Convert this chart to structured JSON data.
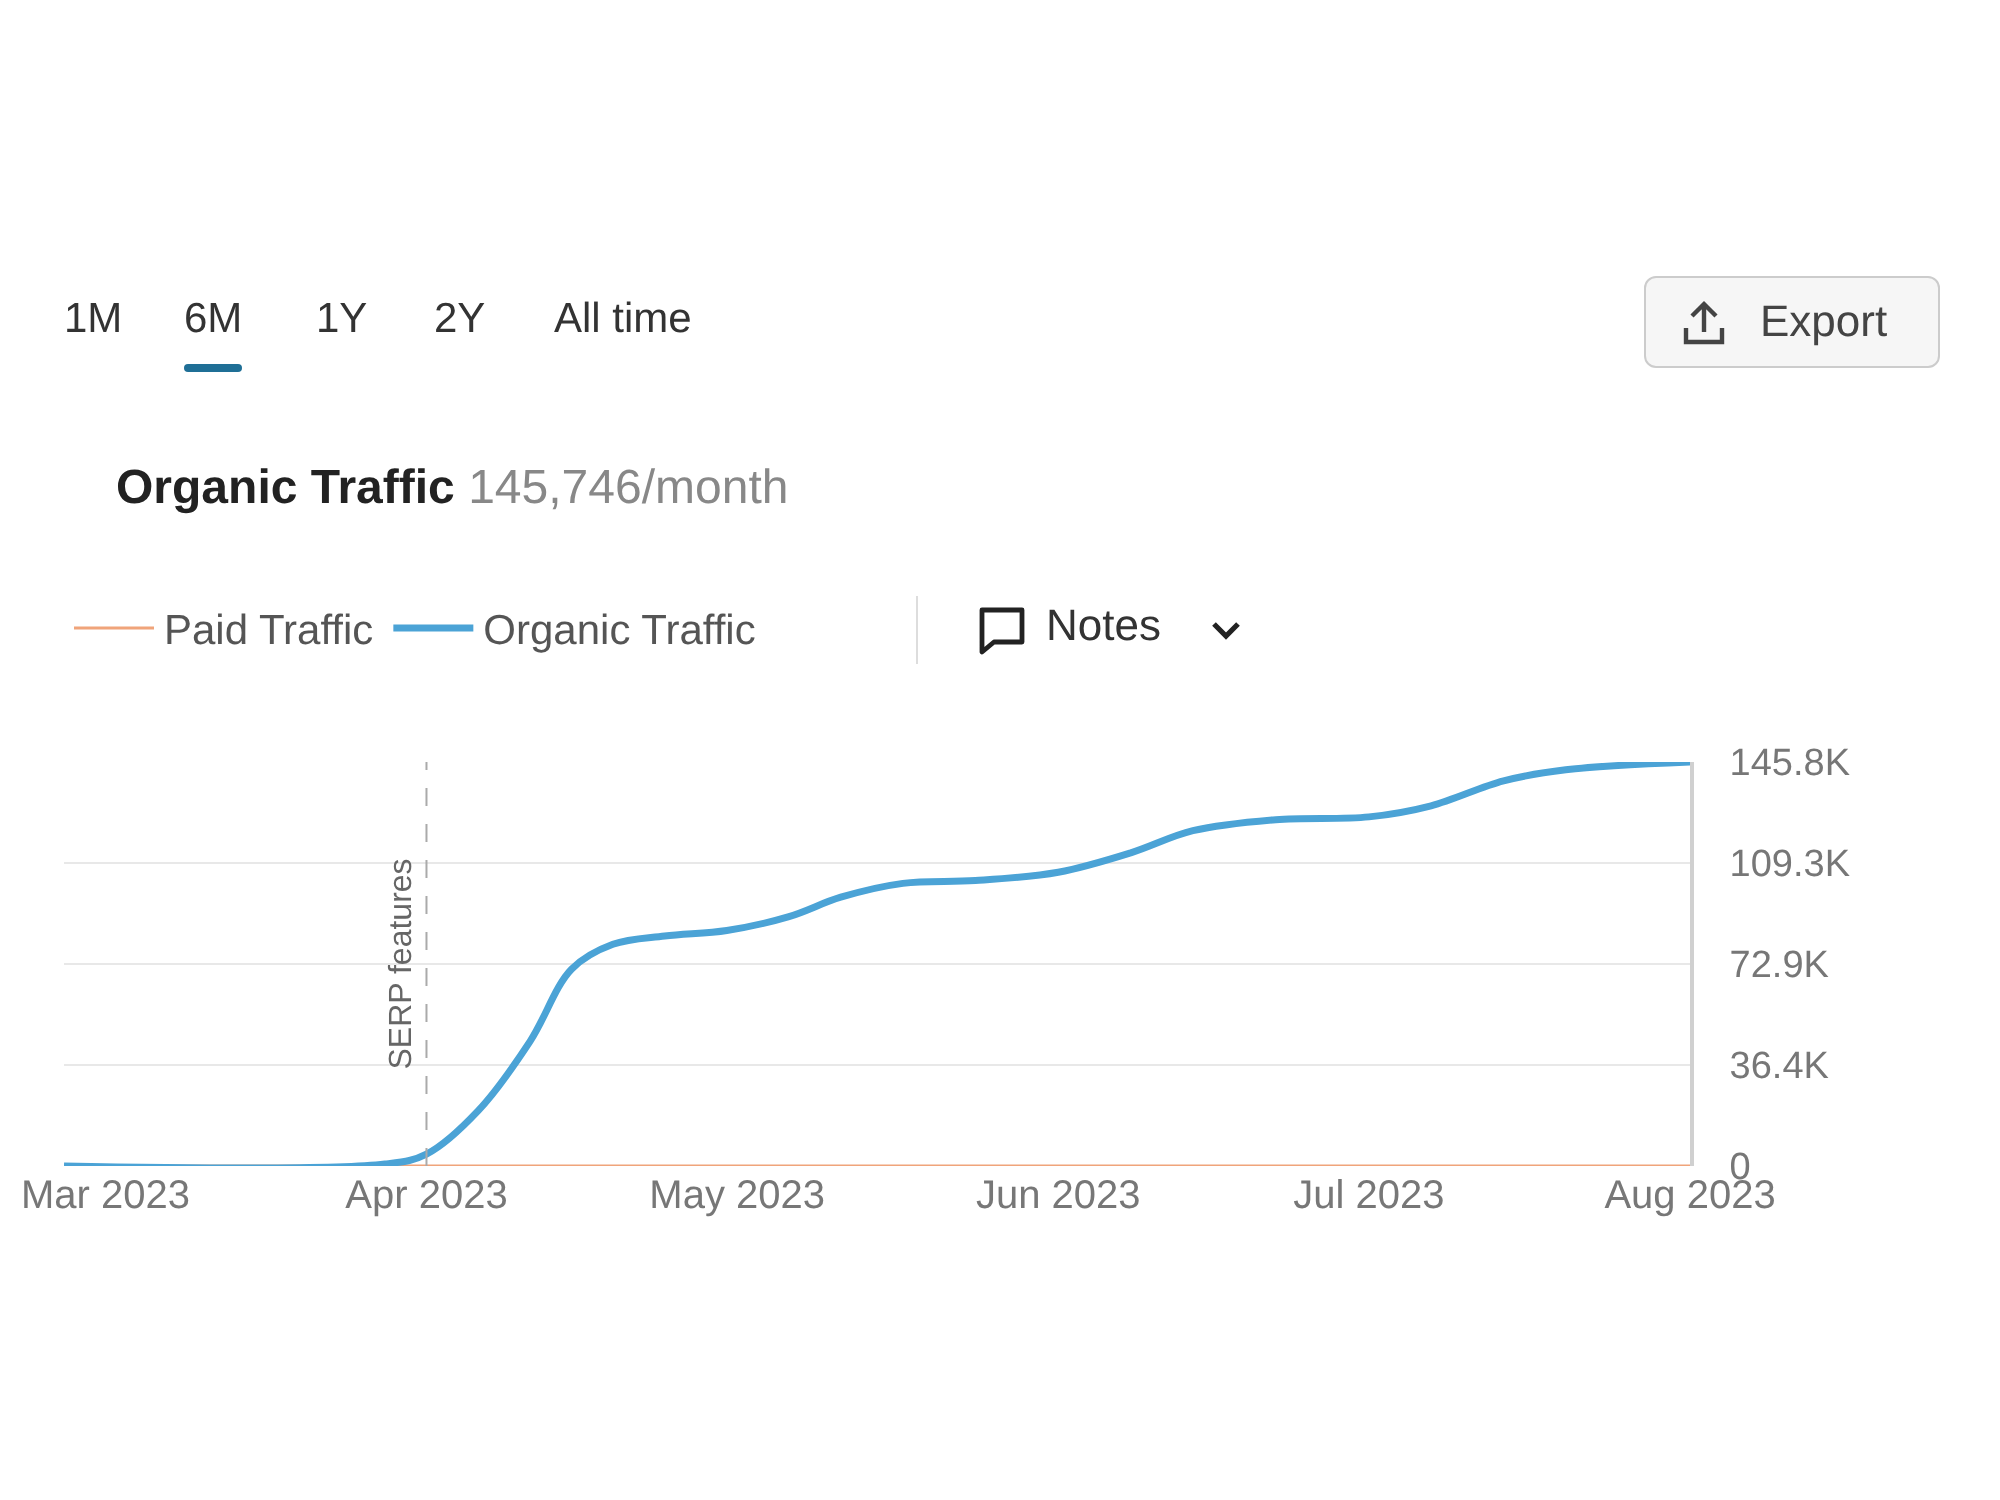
{
  "chart_data": {
    "type": "line",
    "title": "Organic Traffic",
    "subtitle": "145,746/month",
    "annotations": [
      "1M",
      "6M",
      "1Y",
      "2Y",
      "All time",
      "Export",
      "Notes"
    ],
    "x": [
      "2023-02-25",
      "2023-03-28",
      "2023-04-01",
      "2023-04-06",
      "2023-04-11",
      "2023-04-15",
      "2023-04-19",
      "2023-04-24",
      "2023-04-30",
      "2023-05-06",
      "2023-05-11",
      "2023-05-17",
      "2023-05-24",
      "2023-06-01",
      "2023-06-08",
      "2023-06-14",
      "2023-06-22",
      "2023-07-01",
      "2023-07-07",
      "2023-07-14",
      "2023-07-20",
      "2023-08-01"
    ],
    "series": [
      {
        "name": "Organic Traffic",
        "color": "#4ba3d6",
        "values": [
          0,
          700,
          4300,
          20000,
          45000,
          71000,
          80000,
          83000,
          85000,
          90000,
          97000,
          102000,
          103000,
          106000,
          113000,
          121000,
          125000,
          126000,
          130000,
          139000,
          143000,
          145800
        ]
      },
      {
        "name": "Paid Traffic",
        "color": "#f0a47a",
        "values": [
          0,
          0,
          0,
          0,
          0,
          0,
          0,
          0,
          0,
          0,
          0,
          0,
          0,
          0,
          0,
          0,
          0,
          0,
          0,
          0,
          0,
          0
        ]
      }
    ],
    "xlim": [
      "2023-02-25",
      "2023-08-01"
    ],
    "xticks": [
      {
        "value": "2023-03-01",
        "label": "Mar 2023"
      },
      {
        "value": "2023-04-01",
        "label": "Apr 2023"
      },
      {
        "value": "2023-05-01",
        "label": "May 2023"
      },
      {
        "value": "2023-06-01",
        "label": "Jun 2023"
      },
      {
        "value": "2023-07-01",
        "label": "Jul 2023"
      },
      {
        "value": "2023-08-01",
        "label": "Aug 2023"
      }
    ],
    "ylim": [
      0,
      145800
    ],
    "yticks": [
      {
        "value": 0,
        "label": "0"
      },
      {
        "value": 36400,
        "label": "36.4K"
      },
      {
        "value": 72900,
        "label": "72.9K"
      },
      {
        "value": 109300,
        "label": "109.3K"
      },
      {
        "value": 145800,
        "label": "145.8K"
      }
    ],
    "ref_lines": [
      {
        "axis": "x",
        "value": "2023-04-01",
        "label": "SERP features",
        "color": "#aaaaaa",
        "line_style": "dashed"
      }
    ],
    "grid": "y",
    "legend": "top left",
    "marker": "none",
    "line_style": "solid"
  }
}
